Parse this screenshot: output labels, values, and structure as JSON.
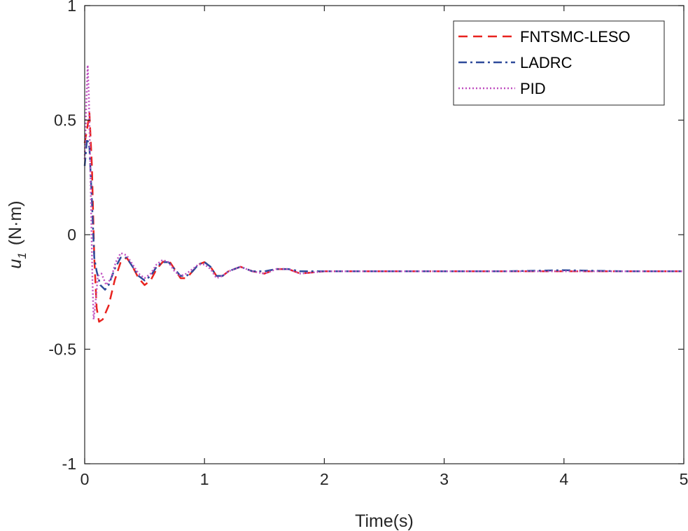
{
  "chart_data": {
    "type": "line",
    "title": "",
    "xlabel": "Time(s)",
    "ylabel_main": "u",
    "ylabel_subscript": "1",
    "ylabel_unit": "(N·m)",
    "xlim": [
      0,
      5
    ],
    "ylim": [
      -1,
      1
    ],
    "x_ticks": [
      0,
      1,
      2,
      3,
      4,
      5
    ],
    "x_tick_labels": [
      "0",
      "1",
      "2",
      "3",
      "4",
      "5"
    ],
    "y_ticks": [
      -1,
      -0.5,
      0,
      0.5,
      1
    ],
    "y_tick_labels": [
      "-1",
      "-0.5",
      "0",
      "0.5",
      "1"
    ],
    "grid": false,
    "legend_position": "top-right",
    "series": [
      {
        "name": "FNTSMC-LESO",
        "color": "#e8231f",
        "style": "dashed",
        "points": [
          [
            0,
            0.4
          ],
          [
            0.02,
            0.46
          ],
          [
            0.04,
            0.53
          ],
          [
            0.06,
            0.3
          ],
          [
            0.08,
            -0.1
          ],
          [
            0.1,
            -0.32
          ],
          [
            0.12,
            -0.38
          ],
          [
            0.15,
            -0.37
          ],
          [
            0.2,
            -0.31
          ],
          [
            0.25,
            -0.2
          ],
          [
            0.3,
            -0.12
          ],
          [
            0.35,
            -0.1
          ],
          [
            0.4,
            -0.14
          ],
          [
            0.45,
            -0.19
          ],
          [
            0.5,
            -0.22
          ],
          [
            0.55,
            -0.2
          ],
          [
            0.6,
            -0.15
          ],
          [
            0.65,
            -0.12
          ],
          [
            0.7,
            -0.11
          ],
          [
            0.75,
            -0.15
          ],
          [
            0.8,
            -0.19
          ],
          [
            0.85,
            -0.19
          ],
          [
            0.9,
            -0.16
          ],
          [
            0.95,
            -0.13
          ],
          [
            1.0,
            -0.12
          ],
          [
            1.05,
            -0.14
          ],
          [
            1.1,
            -0.18
          ],
          [
            1.15,
            -0.18
          ],
          [
            1.2,
            -0.16
          ],
          [
            1.3,
            -0.14
          ],
          [
            1.4,
            -0.16
          ],
          [
            1.5,
            -0.17
          ],
          [
            1.6,
            -0.15
          ],
          [
            1.7,
            -0.15
          ],
          [
            1.8,
            -0.17
          ],
          [
            2.0,
            -0.16
          ],
          [
            2.5,
            -0.16
          ],
          [
            3.0,
            -0.16
          ],
          [
            3.5,
            -0.16
          ],
          [
            4.0,
            -0.16
          ],
          [
            4.5,
            -0.16
          ],
          [
            5.0,
            -0.16
          ]
        ]
      },
      {
        "name": "LADRC",
        "color": "#2e4a9a",
        "style": "dashdot",
        "points": [
          [
            0,
            0.3
          ],
          [
            0.02,
            0.42
          ],
          [
            0.04,
            0.38
          ],
          [
            0.06,
            0.15
          ],
          [
            0.08,
            -0.1
          ],
          [
            0.1,
            -0.16
          ],
          [
            0.13,
            -0.22
          ],
          [
            0.17,
            -0.24
          ],
          [
            0.2,
            -0.22
          ],
          [
            0.25,
            -0.15
          ],
          [
            0.3,
            -0.1
          ],
          [
            0.35,
            -0.1
          ],
          [
            0.4,
            -0.14
          ],
          [
            0.45,
            -0.18
          ],
          [
            0.5,
            -0.2
          ],
          [
            0.55,
            -0.18
          ],
          [
            0.6,
            -0.14
          ],
          [
            0.65,
            -0.12
          ],
          [
            0.7,
            -0.12
          ],
          [
            0.75,
            -0.15
          ],
          [
            0.8,
            -0.18
          ],
          [
            0.85,
            -0.18
          ],
          [
            0.9,
            -0.16
          ],
          [
            0.95,
            -0.13
          ],
          [
            1.0,
            -0.12
          ],
          [
            1.05,
            -0.14
          ],
          [
            1.1,
            -0.18
          ],
          [
            1.15,
            -0.18
          ],
          [
            1.2,
            -0.16
          ],
          [
            1.3,
            -0.14
          ],
          [
            1.4,
            -0.16
          ],
          [
            1.5,
            -0.16
          ],
          [
            1.6,
            -0.15
          ],
          [
            1.7,
            -0.15
          ],
          [
            1.8,
            -0.16
          ],
          [
            2.0,
            -0.16
          ],
          [
            2.5,
            -0.16
          ],
          [
            3.0,
            -0.16
          ],
          [
            3.5,
            -0.16
          ],
          [
            4.0,
            -0.155
          ],
          [
            4.5,
            -0.16
          ],
          [
            5.0,
            -0.16
          ]
        ]
      },
      {
        "name": "PID",
        "color": "#c04fc0",
        "style": "dotted",
        "points": [
          [
            0,
            0.33
          ],
          [
            0.015,
            0.6
          ],
          [
            0.025,
            0.74
          ],
          [
            0.035,
            0.6
          ],
          [
            0.05,
            0.2
          ],
          [
            0.065,
            -0.2
          ],
          [
            0.075,
            -0.37
          ],
          [
            0.09,
            -0.3
          ],
          [
            0.11,
            -0.18
          ],
          [
            0.14,
            -0.17
          ],
          [
            0.18,
            -0.22
          ],
          [
            0.22,
            -0.19
          ],
          [
            0.26,
            -0.12
          ],
          [
            0.3,
            -0.08
          ],
          [
            0.35,
            -0.09
          ],
          [
            0.4,
            -0.13
          ],
          [
            0.45,
            -0.17
          ],
          [
            0.5,
            -0.19
          ],
          [
            0.55,
            -0.17
          ],
          [
            0.6,
            -0.13
          ],
          [
            0.65,
            -0.11
          ],
          [
            0.7,
            -0.12
          ],
          [
            0.75,
            -0.16
          ],
          [
            0.8,
            -0.18
          ],
          [
            0.85,
            -0.17
          ],
          [
            0.9,
            -0.15
          ],
          [
            0.95,
            -0.13
          ],
          [
            1.0,
            -0.13
          ],
          [
            1.05,
            -0.15
          ],
          [
            1.1,
            -0.19
          ],
          [
            1.15,
            -0.18
          ],
          [
            1.2,
            -0.16
          ],
          [
            1.3,
            -0.14
          ],
          [
            1.4,
            -0.16
          ],
          [
            1.5,
            -0.17
          ],
          [
            1.6,
            -0.15
          ],
          [
            1.7,
            -0.15
          ],
          [
            1.8,
            -0.17
          ],
          [
            2.0,
            -0.16
          ],
          [
            2.5,
            -0.16
          ],
          [
            3.0,
            -0.16
          ],
          [
            3.5,
            -0.16
          ],
          [
            4.0,
            -0.16
          ],
          [
            4.5,
            -0.16
          ],
          [
            5.0,
            -0.16
          ]
        ]
      }
    ]
  }
}
